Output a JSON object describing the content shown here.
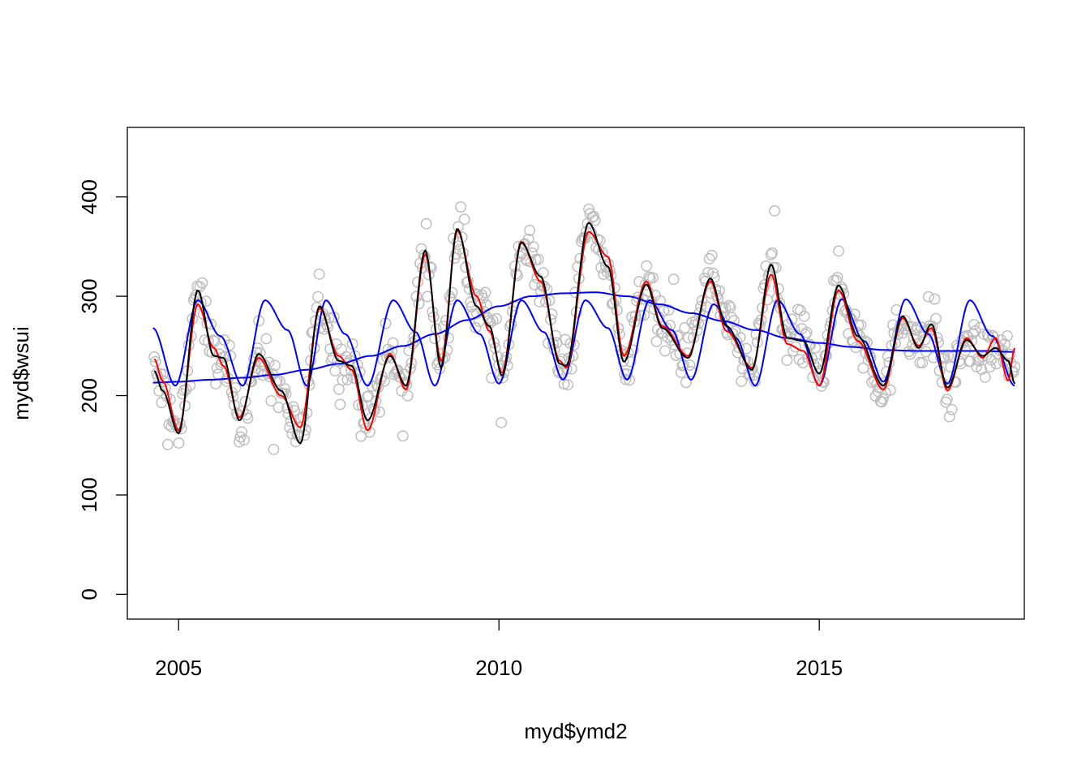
{
  "chart_data": {
    "type": "scatter",
    "xlabel": "myd$ymd2",
    "ylabel": "myd$wsui",
    "xlim": [
      2004.2,
      2018.2
    ],
    "ylim": [
      -25,
      470
    ],
    "x_ticks": [
      2005,
      2010,
      2015
    ],
    "x_tick_labels": [
      "2005",
      "2010",
      "2015"
    ],
    "y_ticks": [
      0,
      100,
      200,
      300,
      400
    ],
    "y_tick_labels": [
      "0",
      "100",
      "200",
      "300",
      "400"
    ],
    "grid": false,
    "legend": "none",
    "x_start": 2004.62,
    "x_end": 2018.05,
    "points_color": "#bebebe",
    "series": [
      {
        "color": "#ff0000",
        "x": [
          2004.62,
          2004.75,
          2005.0,
          2005.3,
          2005.55,
          2005.7,
          2005.95,
          2006.25,
          2006.6,
          2006.9,
          2007.2,
          2007.5,
          2007.7,
          2007.95,
          2008.3,
          2008.55,
          2008.85,
          2009.1,
          2009.35,
          2009.65,
          2009.85,
          2010.05,
          2010.35,
          2010.65,
          2010.95,
          2011.05,
          2011.4,
          2011.7,
          2011.95,
          2012.3,
          2012.55,
          2012.95,
          2013.3,
          2013.55,
          2013.95,
          2014.25,
          2014.5,
          2014.75,
          2015.0,
          2015.3,
          2015.6,
          2016.0,
          2016.3,
          2016.55,
          2016.75,
          2017.0,
          2017.3,
          2017.55,
          2017.75,
          2017.95,
          2018.05
        ],
        "y": [
          237,
          215,
          165,
          292,
          248,
          230,
          178,
          238,
          200,
          168,
          288,
          240,
          226,
          165,
          242,
          206,
          342,
          235,
          366,
          300,
          265,
          223,
          355,
          315,
          235,
          228,
          365,
          340,
          240,
          315,
          270,
          240,
          315,
          265,
          228,
          322,
          252,
          245,
          210,
          306,
          255,
          206,
          278,
          250,
          268,
          205,
          258,
          238,
          258,
          215,
          248
        ]
      },
      {
        "color": "#000000",
        "x": [
          2004.62,
          2004.75,
          2005.0,
          2005.3,
          2005.55,
          2005.7,
          2005.95,
          2006.25,
          2006.6,
          2006.9,
          2007.2,
          2007.5,
          2007.7,
          2007.95,
          2008.3,
          2008.55,
          2008.85,
          2009.1,
          2009.35,
          2009.65,
          2009.85,
          2010.05,
          2010.35,
          2010.65,
          2010.95,
          2011.05,
          2011.4,
          2011.7,
          2011.95,
          2012.3,
          2012.55,
          2012.95,
          2013.3,
          2013.55,
          2013.95,
          2014.25,
          2014.5,
          2014.75,
          2015.0,
          2015.3,
          2015.6,
          2016.0,
          2016.3,
          2016.55,
          2016.75,
          2017.0,
          2017.3,
          2017.55,
          2017.75,
          2017.95,
          2018.05
        ],
        "y": [
          225,
          205,
          162,
          306,
          240,
          238,
          175,
          242,
          205,
          152,
          290,
          235,
          230,
          175,
          240,
          210,
          346,
          228,
          368,
          290,
          270,
          220,
          354,
          320,
          232,
          230,
          374,
          330,
          234,
          312,
          268,
          238,
          318,
          270,
          226,
          332,
          258,
          255,
          222,
          311,
          260,
          210,
          280,
          248,
          272,
          208,
          256,
          240,
          248,
          235,
          212
        ]
      },
      {
        "color": "#0000ff",
        "x": [
          2004.6,
          2005.0,
          2005.5,
          2006.0,
          2006.5,
          2007.0,
          2007.5,
          2008.0,
          2008.5,
          2009.0,
          2009.5,
          2010.0,
          2010.5,
          2011.0,
          2011.5,
          2012.0,
          2012.5,
          2013.0,
          2013.5,
          2014.0,
          2014.5,
          2015.0,
          2015.5,
          2016.0,
          2016.5,
          2017.0,
          2017.5,
          2018.05
        ],
        "y": [
          213,
          214,
          216,
          218,
          221,
          226,
          232,
          240,
          250,
          262,
          276,
          290,
          300,
          303,
          304,
          300,
          292,
          283,
          275,
          266,
          258,
          253,
          249,
          246,
          245,
          245,
          245,
          244
        ]
      },
      {
        "color": "#0000ff",
        "x": [
          2004.6,
          2004.95,
          2005.3,
          2005.65,
          2006.0,
          2006.35,
          2006.7,
          2007.0,
          2007.3,
          2007.6,
          2007.95,
          2008.35,
          2008.7,
          2009.0,
          2009.35,
          2009.7,
          2010.0,
          2010.35,
          2010.7,
          2011.0,
          2011.35,
          2011.7,
          2012.0,
          2012.35,
          2012.7,
          2013.0,
          2013.35,
          2013.7,
          2014.0,
          2014.35,
          2014.7,
          2015.0,
          2015.35,
          2015.7,
          2016.0,
          2016.35,
          2016.7,
          2017.0,
          2017.35,
          2017.7,
          2018.05
        ],
        "y": [
          268,
          210,
          296,
          260,
          210,
          296,
          266,
          210,
          296,
          262,
          210,
          296,
          264,
          210,
          296,
          262,
          212,
          296,
          264,
          216,
          296,
          268,
          216,
          296,
          266,
          216,
          292,
          258,
          210,
          296,
          262,
          210,
          297,
          255,
          214,
          297,
          262,
          212,
          296,
          260,
          210
        ]
      }
    ]
  }
}
